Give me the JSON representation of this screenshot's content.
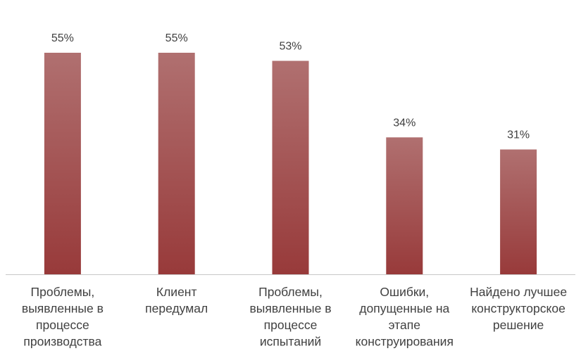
{
  "chart_data": {
    "type": "bar",
    "title": "",
    "xlabel": "",
    "ylabel": "",
    "ylim": [
      0,
      55
    ],
    "grid": false,
    "legend": "none",
    "categories": [
      [
        "Проблемы,",
        "выявленные в",
        "процессе",
        "производства"
      ],
      [
        "Клиент",
        "передумал"
      ],
      [
        "Проблемы,",
        "выявленные в",
        "процессе",
        "испытаний"
      ],
      [
        "Ошибки,",
        "допущенные на",
        "этапе",
        "конструирования"
      ],
      [
        "Найдено лучшее",
        "конструкторское",
        "решение"
      ]
    ],
    "values": [
      55,
      55,
      53,
      34,
      31
    ],
    "value_labels": [
      "55%",
      "55%",
      "53%",
      "34%",
      "31%"
    ],
    "unit": "%",
    "colors": {
      "bar_top": "#b07070",
      "bar_bottom": "#983a3a",
      "axis": "#c8c8c8",
      "text": "#404040"
    }
  }
}
